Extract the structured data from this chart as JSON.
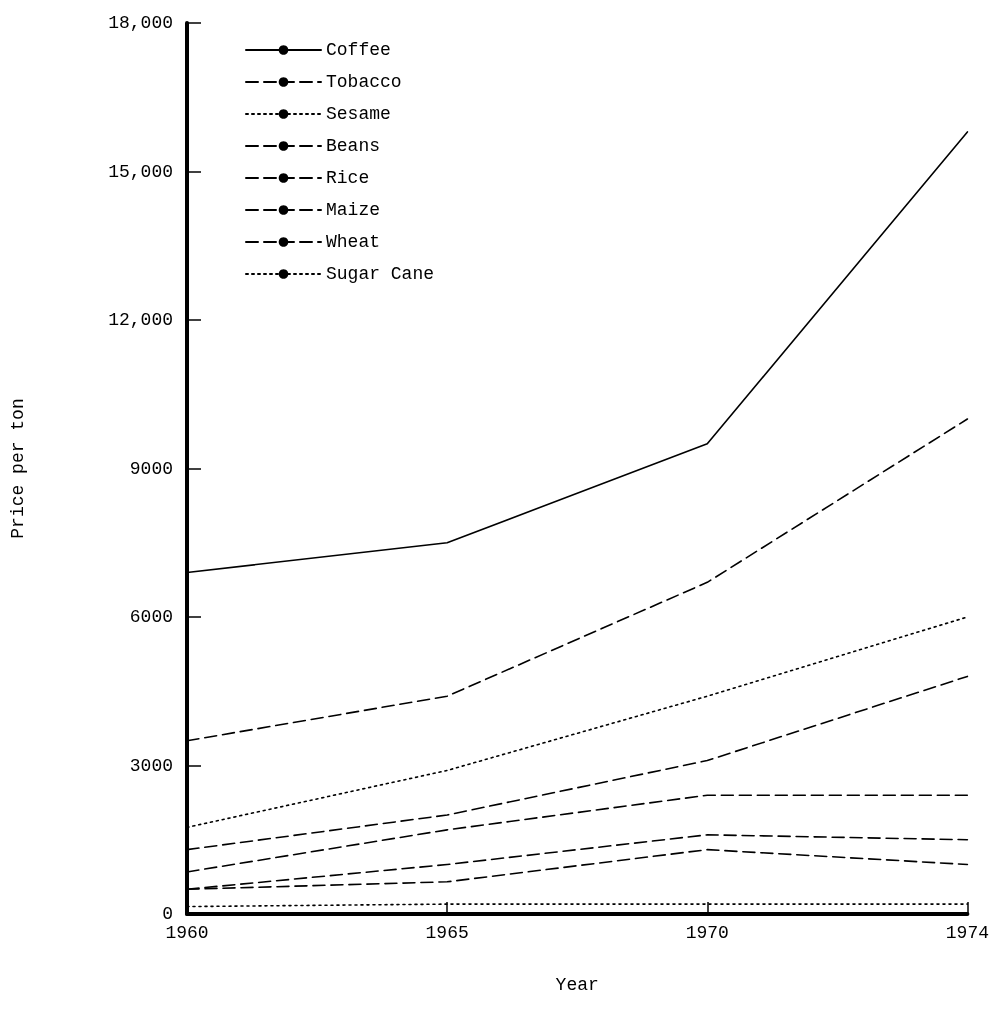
{
  "chart_data": {
    "type": "line",
    "xlabel": "Year",
    "ylabel": "Price per ton",
    "categories": [
      "1960",
      "1965",
      "1970",
      "1974"
    ],
    "ylim": [
      0,
      18000
    ],
    "yticks": [
      0,
      3000,
      6000,
      9000,
      {
        "value": 12000,
        "label": "12,000"
      },
      {
        "value": 15000,
        "label": "15,000"
      },
      {
        "value": 18000,
        "label": "18,000"
      }
    ],
    "grid": false,
    "legend": "top left",
    "marker": "none",
    "series": [
      {
        "name": "Coffee",
        "color": "#000000",
        "line_style": "solid",
        "values": [
          6900,
          7500,
          9500,
          15800
        ]
      },
      {
        "name": "Tobacco",
        "color": "#000000",
        "line_style": "dashed",
        "values": [
          3500,
          4400,
          6700,
          10000
        ]
      },
      {
        "name": "Sesame",
        "color": "#000000",
        "line_style": "dotted",
        "values": [
          1750,
          2900,
          4400,
          6000
        ]
      },
      {
        "name": "Beans",
        "color": "#000000",
        "line_style": "dashed",
        "values": [
          1300,
          2000,
          3100,
          4800
        ]
      },
      {
        "name": "Rice",
        "color": "#000000",
        "line_style": "dashed",
        "values": [
          850,
          1700,
          2400,
          2400
        ]
      },
      {
        "name": "Maize",
        "color": "#000000",
        "line_style": "dashed",
        "values": [
          500,
          1000,
          1600,
          1500
        ]
      },
      {
        "name": "Wheat",
        "color": "#000000",
        "line_style": "dashed",
        "values": [
          500,
          650,
          1300,
          1000
        ]
      },
      {
        "name": "Sugar Cane",
        "color": "#000000",
        "line_style": "dotted",
        "values": [
          150,
          200,
          200,
          200
        ]
      }
    ]
  }
}
